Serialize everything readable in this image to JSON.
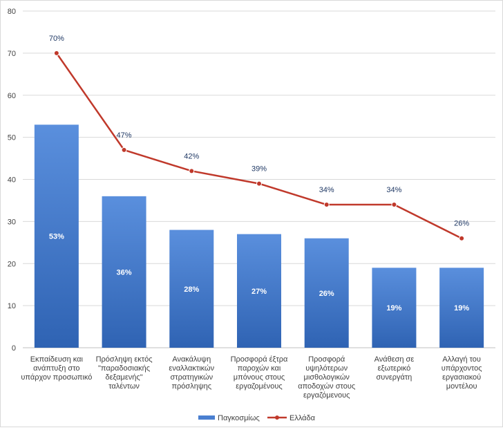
{
  "chart_data": {
    "type": "bar",
    "categories": [
      [
        "Εκπαίδευση και",
        "ανάπτυξη στο",
        "υπάρχον προσωπικό"
      ],
      [
        "Πρόσληψη εκτός",
        "\"παραδοσιακής",
        "δεξαμενής\"",
        "ταλέντων"
      ],
      [
        "Ανακάλυψη",
        "εναλλακτικών",
        "στρατηγικών",
        "πρόσληψης"
      ],
      [
        "Προσφορά έξτρα",
        "παροχών και",
        "μπόνους στους",
        "εργαζομένους"
      ],
      [
        "Προσφορά",
        "υψηλότερων",
        "μισθολογικών",
        "αποδοχών  στους",
        "εργαζόμενους"
      ],
      [
        "Ανάθεση σε",
        "εξωτερικό",
        "συνεργάτη"
      ],
      [
        "Αλλαγή του",
        "υπάρχοντος",
        "εργασιακού",
        "μοντέλου"
      ]
    ],
    "series": [
      {
        "name": "Παγκοσμίως",
        "type": "bar",
        "values": [
          53,
          36,
          28,
          27,
          26,
          19,
          19
        ],
        "labels": [
          "53%",
          "36%",
          "28%",
          "27%",
          "26%",
          "19%",
          "19%"
        ],
        "color": "#4a7fd0"
      },
      {
        "name": "Ελλάδα",
        "type": "line",
        "values": [
          70,
          47,
          42,
          39,
          34,
          34,
          26
        ],
        "labels": [
          "70%",
          "47%",
          "42%",
          "39%",
          "34%",
          "34%",
          "26%"
        ],
        "color": "#c0392b"
      }
    ],
    "yticks": [
      "0",
      "10",
      "20",
      "30",
      "40",
      "50",
      "60",
      "70",
      "80"
    ],
    "ylim": [
      0,
      80
    ],
    "grid": true,
    "legend": "bottom"
  }
}
